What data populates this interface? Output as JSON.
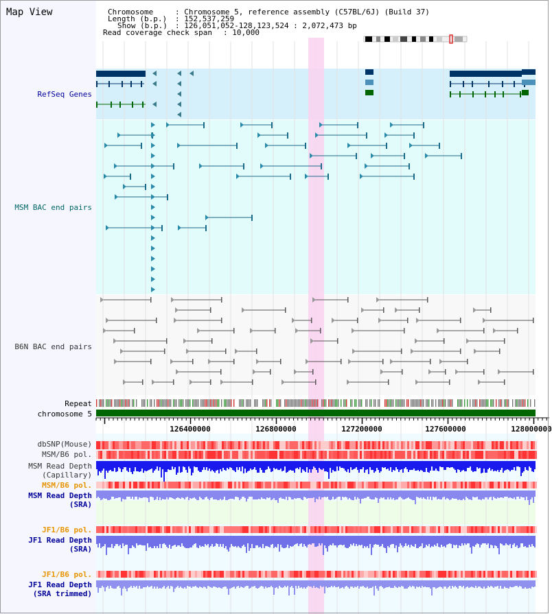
{
  "header": {
    "title": "Map View",
    "chromosome_label": "Chromosome",
    "chromosome_value": ": Chromosome 5, reference assembly (C57BL/6J) (Build 37)",
    "length_label": "Length (b.p.)",
    "length_value": ": 152,537,259",
    "show_label": "Show (b.p.)",
    "show_value": ": 126,051,052-128,123,524 : 2,072,473 bp",
    "coverage_label": "Read coverage check span",
    "coverage_value": ": 10,000"
  },
  "tracks": {
    "refseq": "RefSeq Genes",
    "msm_bac": "MSM BAC end pairs",
    "b6n_bac": "B6N BAC end pairs",
    "repeat": "Repeat",
    "chromosome": "chromosome 5",
    "dbsnp": "dbSNP(Mouse)",
    "msm_b6_pol": "MSM/B6 pol.",
    "msm_depth_cap_1": "MSM Read Depth",
    "msm_depth_cap_2": "(Capillary)",
    "msm_b6_pol_2": "MSM/B6 pol.",
    "msm_depth_sra_1": "MSM Read Depth",
    "msm_depth_sra_2": "(SRA)",
    "jf1_b6_pol": "JF1/B6 pol.",
    "jf1_depth_sra_1": "JF1 Read Depth",
    "jf1_depth_sra_2": "(SRA)",
    "jf1_b6_pol_2": "JF1/B6 pol.",
    "jf1_depth_trim_1": "JF1 Read Depth",
    "jf1_depth_trim_2": "(SRA trimmed)"
  },
  "axis": {
    "ticks": [
      "126400000",
      "126800000",
      "127200000",
      "127600000",
      "128000000"
    ]
  },
  "colors": {
    "label_dark": "#333333",
    "label_blue": "#000099",
    "label_teal": "#006666",
    "label_orange": "#e69500",
    "refseq_bg": "#d6f0fb",
    "msm_bg": "#e2fbfb",
    "highlight": "#fad2f0",
    "chromosome": "#006600"
  }
}
